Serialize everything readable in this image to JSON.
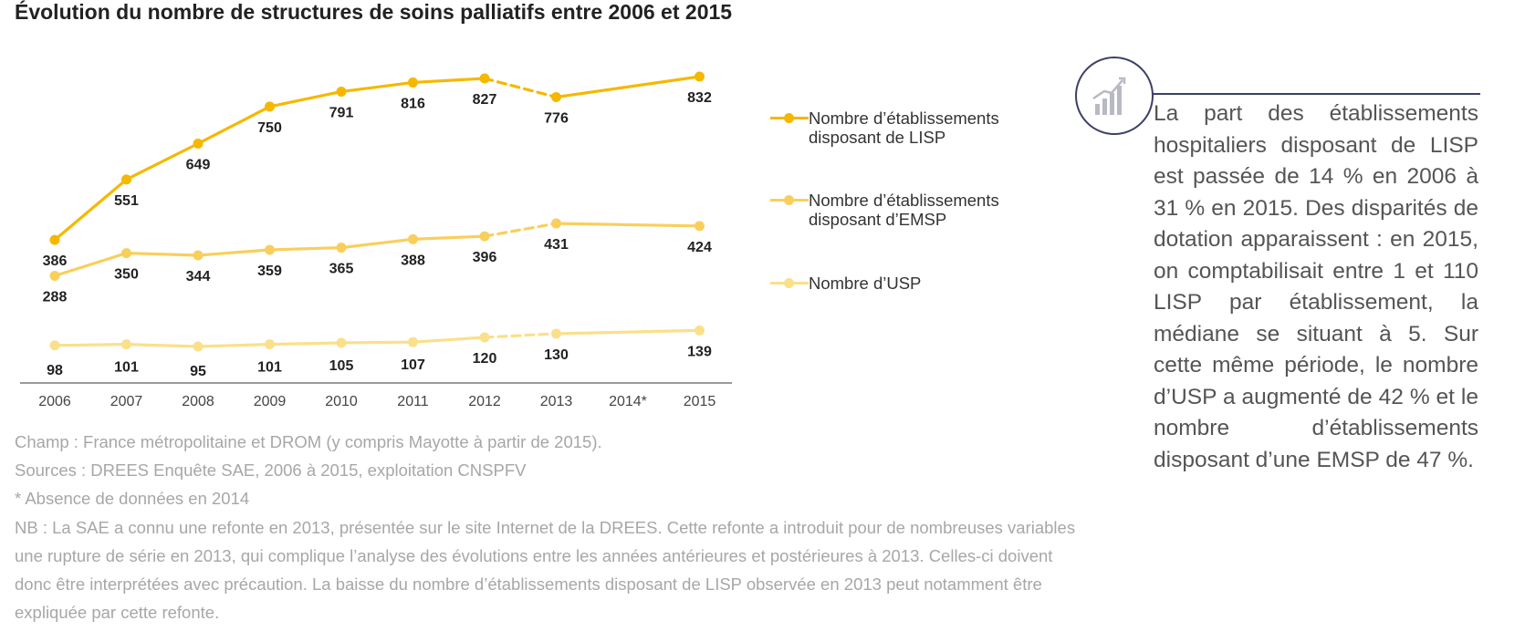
{
  "title": "Évolution du nombre de structures de soins palliatifs entre 2006 et 2015",
  "chart_data": {
    "type": "line",
    "categories": [
      "2006",
      "2007",
      "2008",
      "2009",
      "2010",
      "2011",
      "2012",
      "2013",
      "2014*",
      "2015"
    ],
    "series": [
      {
        "name": "Nombre d’établissements\ndisposant de LISP",
        "color": "#f5b800",
        "values": [
          386,
          551,
          649,
          750,
          791,
          816,
          827,
          776,
          null,
          832
        ]
      },
      {
        "name": "Nombre d’établissements\ndisposant d’EMSP",
        "color": "#f9cf5c",
        "values": [
          288,
          350,
          344,
          359,
          365,
          388,
          396,
          431,
          null,
          424
        ]
      },
      {
        "name": "Nombre d’USP",
        "color": "#fbe08a",
        "values": [
          98,
          101,
          95,
          101,
          105,
          107,
          120,
          130,
          null,
          139
        ]
      }
    ],
    "dashed_segment": [
      "2012",
      "2013"
    ],
    "ylim": [
      0,
      900
    ],
    "grid": false,
    "legend_position": "right"
  },
  "notes": {
    "champ": "Champ : France métropolitaine et DROM (y compris Mayotte à partir de 2015).",
    "sources": "Sources : DREES Enquête SAE, 2006 à 2015, exploitation CNSPFV",
    "absence": "* Absence de données en 2014",
    "nb": "NB : La SAE a connu une refonte en 2013, présentée sur le site Internet de la DREES. Cette refonte a introduit pour de nombreuses variables une rupture de série en 2013, qui complique l’analyse des évolutions entre les années antérieures et postérieures à 2013. Celles-ci doivent donc être interprétées avec précaution. La baisse du nombre d’établissements disposant de LISP observée en 2013 peut notamment être expliquée par cette refonte."
  },
  "sidebar": {
    "icon": "bar-chart-icon",
    "text": "La part des établissements hospitaliers disposant de LISP est passée de 14 % en 2006 à 31 % en 2015. Des disparités de dotation apparaissent : en 2015, on comptabilisait entre 1 et 110 LISP par établissement, la médiane se situant à 5. Sur cette même période, le nombre d’USP a augmenté de 42 % et le nombre d’établissements disposant d’une EMSP de 47 %."
  }
}
